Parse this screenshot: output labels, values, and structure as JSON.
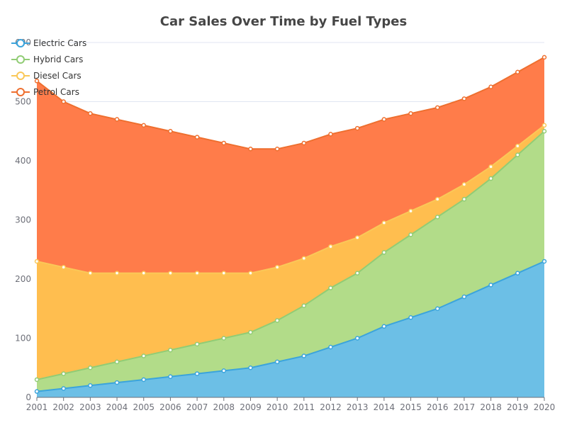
{
  "chart_data": {
    "type": "area",
    "stacked": true,
    "title": "Car Sales Over Time by Fuel Types",
    "xlabel": "",
    "ylabel": "",
    "categories": [
      "2001",
      "2002",
      "2003",
      "2004",
      "2005",
      "2006",
      "2007",
      "2008",
      "2009",
      "2010",
      "2011",
      "2012",
      "2013",
      "2014",
      "2015",
      "2016",
      "2017",
      "2018",
      "2019",
      "2020"
    ],
    "ylim": [
      0,
      600
    ],
    "yticks": [
      0,
      100,
      200,
      300,
      400,
      500,
      600
    ],
    "grid": true,
    "legend_position": "top-left",
    "series": [
      {
        "name": "Electric Cars",
        "color": "#3ba4dc",
        "fill": "#6cbfe6",
        "values": [
          10,
          15,
          20,
          25,
          30,
          35,
          40,
          45,
          50,
          60,
          70,
          85,
          100,
          120,
          135,
          150,
          170,
          190,
          210,
          230
        ]
      },
      {
        "name": "Hybrid Cars",
        "color": "#91cc75",
        "fill": "#b2dc89",
        "values": [
          20,
          25,
          30,
          35,
          40,
          45,
          50,
          55,
          60,
          70,
          85,
          100,
          110,
          125,
          140,
          155,
          165,
          180,
          200,
          220
        ]
      },
      {
        "name": "Diesel Cars",
        "color": "#fac858",
        "fill": "#ffbe4f",
        "values": [
          200,
          180,
          160,
          150,
          140,
          130,
          120,
          110,
          100,
          90,
          80,
          70,
          60,
          50,
          40,
          30,
          25,
          20,
          15,
          10
        ]
      },
      {
        "name": "Petrol Cars",
        "color": "#ee6f2f",
        "fill": "#ff7c4a",
        "values": [
          305,
          280,
          270,
          260,
          250,
          240,
          230,
          220,
          210,
          200,
          195,
          190,
          185,
          175,
          165,
          155,
          145,
          135,
          125,
          115
        ]
      }
    ]
  }
}
